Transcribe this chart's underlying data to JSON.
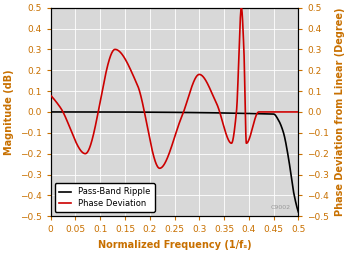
{
  "title": "",
  "xlabel": "Normalized Frequency (1/fₛ)",
  "ylabel_left": "Magnitude (dB)",
  "ylabel_right": "Phase Deviation from Linear (Degree)",
  "xlim": [
    0,
    0.5
  ],
  "ylim": [
    -0.5,
    0.5
  ],
  "xticks": [
    0,
    0.05,
    0.1,
    0.15,
    0.2,
    0.25,
    0.3,
    0.35,
    0.4,
    0.45,
    0.5
  ],
  "yticks": [
    -0.5,
    -0.4,
    -0.3,
    -0.2,
    -0.1,
    0,
    0.1,
    0.2,
    0.3,
    0.4,
    0.5
  ],
  "legend_labels": [
    "Pass-Band Ripple",
    "Phase Deviation"
  ],
  "legend_colors": [
    "#000000",
    "#cc0000"
  ],
  "line_color_ripple": "#000000",
  "line_color_phase": "#cc0000",
  "axis_label_color": "#c87000",
  "tick_color": "#c87000",
  "background_color": "#d8d8d8",
  "watermark": "C9002",
  "phase_keypoints_x": [
    0.0,
    0.02,
    0.07,
    0.13,
    0.175,
    0.22,
    0.265,
    0.3,
    0.335,
    0.365,
    0.375,
    0.385,
    0.39,
    0.395,
    0.42,
    0.45,
    0.5
  ],
  "phase_keypoints_y": [
    0.08,
    0.02,
    -0.2,
    0.3,
    0.13,
    -0.27,
    -0.02,
    0.18,
    0.04,
    -0.15,
    0.0,
    0.5,
    0.3,
    -0.15,
    0.0,
    0.0,
    0.0
  ],
  "ripple_keypoints_x": [
    0.0,
    0.45,
    0.46,
    0.47,
    0.48,
    0.49,
    0.5
  ],
  "ripple_keypoints_y": [
    0.0,
    -0.01,
    -0.04,
    -0.1,
    -0.22,
    -0.38,
    -0.48
  ]
}
